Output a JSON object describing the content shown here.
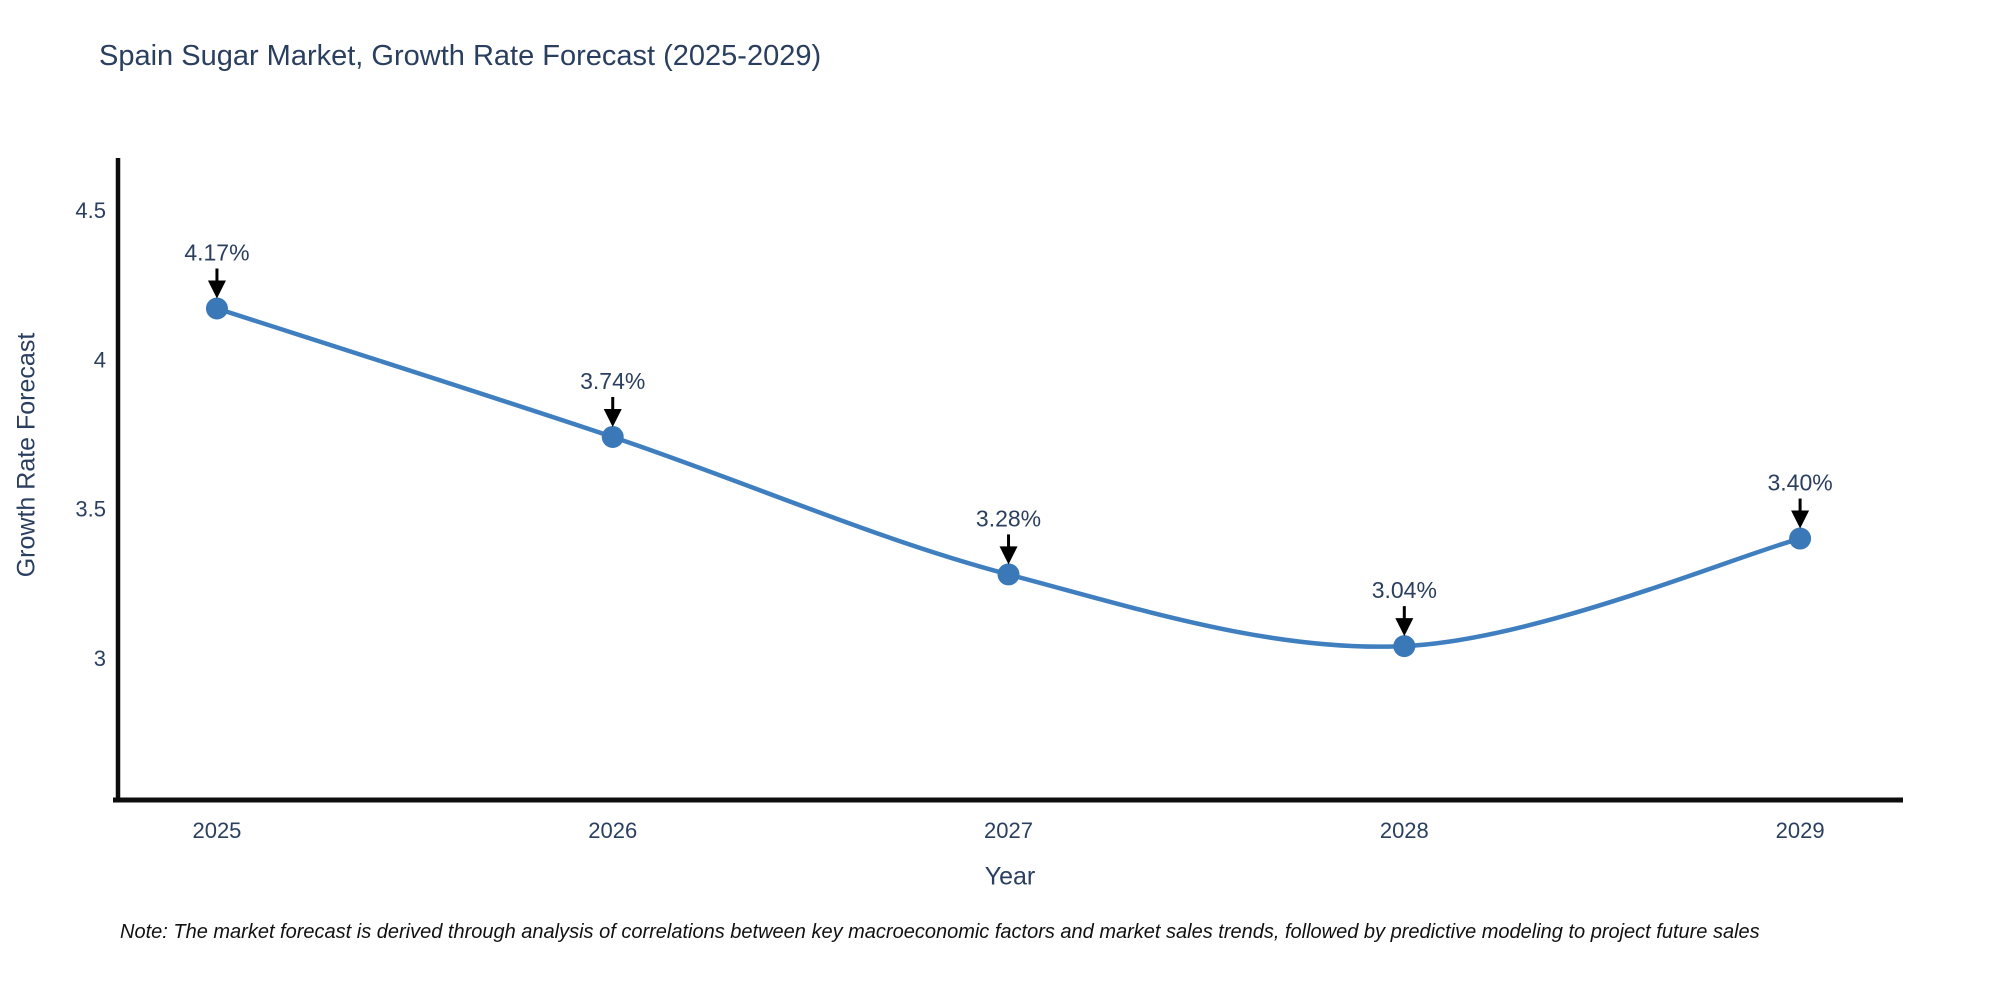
{
  "page": {
    "note": "Note: The market forecast is derived through analysis of correlations between key macroeconomic factors and market sales trends, followed by predictive modeling to project future sales"
  },
  "chart_data": {
    "type": "line",
    "title": "Spain Sugar Market, Growth Rate Forecast (2025-2029)",
    "xlabel": "Year",
    "ylabel": "Growth Rate Forecast",
    "x": [
      2025,
      2026,
      2027,
      2028,
      2029
    ],
    "series": [
      {
        "name": "Growth Rate Forecast",
        "values": [
          4.17,
          3.74,
          3.28,
          3.04,
          3.4
        ]
      }
    ],
    "point_labels": [
      "4.17%",
      "3.74%",
      "3.28%",
      "3.04%",
      "3.40%"
    ],
    "x_tick_labels": [
      "2025",
      "2026",
      "2027",
      "2028",
      "2029"
    ],
    "y_ticks": [
      {
        "value": 3,
        "label": "3"
      },
      {
        "value": 3.5,
        "label": "3.5"
      },
      {
        "value": 4,
        "label": "4"
      },
      {
        "value": 4.5,
        "label": "4.5"
      }
    ],
    "xlim": [
      2024.75,
      2029.26
    ],
    "ylim": [
      2.525,
      4.667
    ],
    "grid": false,
    "legend": "none",
    "line_shape": "spline",
    "colors": {
      "line": "#3f7fbf",
      "marker": "#3a78b8",
      "axis": "#0d0d0d",
      "text": "#2a3f5f",
      "annotation_arrow": "#000000"
    }
  }
}
